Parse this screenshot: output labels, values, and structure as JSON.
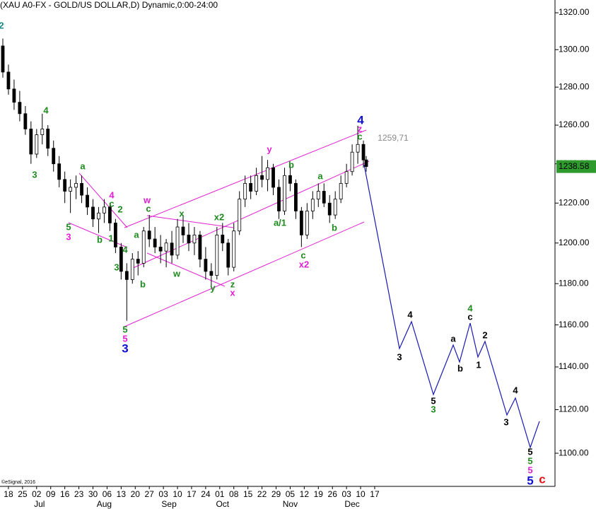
{
  "chart_data": {
    "type": "candlestick",
    "title": "(XAU A0-FX - GOLD/US DOLLAR,D) Dynamic,0:00-24:00",
    "credit": "©eSignal, 2016",
    "log_scale": true,
    "ylim": [
      1085,
      1327
    ],
    "xlim": [
      -3,
      194
    ],
    "yticks": [
      {
        "value": 1100,
        "label": "1100.00"
      },
      {
        "value": 1120,
        "label": "1120.00"
      },
      {
        "value": 1140,
        "label": "1140.00"
      },
      {
        "value": 1160,
        "label": "1160.00"
      },
      {
        "value": 1180,
        "label": "1180.00"
      },
      {
        "value": 1200,
        "label": "1200.00"
      },
      {
        "value": 1220,
        "label": "1220.00"
      },
      {
        "value": 1240,
        "label": "1240.00"
      },
      {
        "value": 1260,
        "label": "1260.00"
      },
      {
        "value": 1280,
        "label": "1280.00"
      },
      {
        "value": 1300,
        "label": "1300.00"
      },
      {
        "value": 1320,
        "label": "1320.00"
      }
    ],
    "xticks": [
      {
        "value": 0,
        "label": "18"
      },
      {
        "value": 5,
        "label": "25"
      },
      {
        "value": 10,
        "label": "02"
      },
      {
        "value": 15,
        "label": "09"
      },
      {
        "value": 20,
        "label": "16"
      },
      {
        "value": 25,
        "label": "23"
      },
      {
        "value": 30,
        "label": "30"
      },
      {
        "value": 35,
        "label": "06"
      },
      {
        "value": 40,
        "label": "13"
      },
      {
        "value": 45,
        "label": "20"
      },
      {
        "value": 50,
        "label": "27"
      },
      {
        "value": 55,
        "label": "03"
      },
      {
        "value": 60,
        "label": "10"
      },
      {
        "value": 65,
        "label": "17"
      },
      {
        "value": 70,
        "label": "24"
      },
      {
        "value": 75,
        "label": "01"
      },
      {
        "value": 80,
        "label": "08"
      },
      {
        "value": 85,
        "label": "15"
      },
      {
        "value": 90,
        "label": "22"
      },
      {
        "value": 95,
        "label": "29"
      },
      {
        "value": 100,
        "label": "05"
      },
      {
        "value": 105,
        "label": "12"
      },
      {
        "value": 110,
        "label": "19"
      },
      {
        "value": 115,
        "label": "26"
      },
      {
        "value": 120,
        "label": "03"
      },
      {
        "value": 125,
        "label": "10"
      },
      {
        "value": 130,
        "label": "17"
      }
    ],
    "month_labels": [
      {
        "value": 11,
        "label": "Jul"
      },
      {
        "value": 34,
        "label": "Aug"
      },
      {
        "value": 57,
        "label": "Sep"
      },
      {
        "value": 76,
        "label": "Oct"
      },
      {
        "value": 100,
        "label": "Nov"
      },
      {
        "value": 122,
        "label": "Dec"
      }
    ],
    "last_price": 1238.58,
    "last_price_color": "#2e9a2e",
    "candles": {
      "x": [
        -2,
        0,
        2,
        4,
        6,
        8,
        10,
        12,
        14,
        16,
        18,
        20,
        22,
        24,
        26,
        28,
        30,
        32,
        34,
        36,
        38,
        40,
        42,
        44,
        46,
        48,
        50,
        52,
        54,
        56,
        58,
        60,
        62,
        64,
        66,
        68,
        70,
        72,
        74,
        76,
        78,
        80,
        82,
        84,
        86,
        88,
        90,
        92,
        94,
        96,
        98,
        100,
        102,
        104,
        106,
        108,
        110,
        112,
        114,
        116,
        118,
        120,
        122,
        124,
        126,
        127
      ],
      "open": [
        1302,
        1288,
        1279,
        1272,
        1266,
        1258,
        1245,
        1255,
        1258,
        1248,
        1240,
        1232,
        1226,
        1228,
        1230,
        1224,
        1218,
        1212,
        1215,
        1218,
        1210,
        1198,
        1186,
        1182,
        1192,
        1190,
        1206,
        1202,
        1198,
        1196,
        1200,
        1194,
        1208,
        1204,
        1200,
        1204,
        1192,
        1186,
        1184,
        1204,
        1200,
        1188,
        1206,
        1222,
        1230,
        1226,
        1234,
        1232,
        1238,
        1228,
        1216,
        1234,
        1230,
        1216,
        1204,
        1216,
        1222,
        1226,
        1220,
        1214,
        1222,
        1230,
        1236,
        1246,
        1250,
        1242
      ],
      "high": [
        1306,
        1292,
        1284,
        1278,
        1270,
        1262,
        1258,
        1266,
        1260,
        1252,
        1244,
        1236,
        1232,
        1234,
        1234,
        1228,
        1222,
        1218,
        1222,
        1220,
        1212,
        1200,
        1190,
        1195,
        1196,
        1208,
        1214,
        1208,
        1204,
        1202,
        1206,
        1212,
        1214,
        1210,
        1208,
        1206,
        1198,
        1190,
        1208,
        1210,
        1202,
        1210,
        1226,
        1234,
        1234,
        1238,
        1244,
        1242,
        1240,
        1232,
        1238,
        1240,
        1232,
        1218,
        1220,
        1226,
        1230,
        1230,
        1224,
        1226,
        1234,
        1240,
        1250,
        1259.71,
        1252,
        1244
      ],
      "low": [
        1285,
        1276,
        1268,
        1262,
        1255,
        1240,
        1243,
        1250,
        1244,
        1236,
        1228,
        1220,
        1215,
        1222,
        1220,
        1214,
        1208,
        1205,
        1210,
        1206,
        1195,
        1182,
        1162,
        1180,
        1184,
        1188,
        1198,
        1195,
        1190,
        1188,
        1190,
        1192,
        1200,
        1196,
        1194,
        1188,
        1182,
        1178,
        1182,
        1196,
        1184,
        1186,
        1204,
        1218,
        1222,
        1224,
        1228,
        1226,
        1224,
        1212,
        1214,
        1226,
        1212,
        1198,
        1202,
        1212,
        1218,
        1218,
        1210,
        1212,
        1220,
        1228,
        1234,
        1240,
        1238,
        1236
      ],
      "close": [
        1288,
        1279,
        1272,
        1266,
        1258,
        1245,
        1255,
        1258,
        1248,
        1240,
        1232,
        1226,
        1228,
        1230,
        1224,
        1218,
        1212,
        1215,
        1218,
        1210,
        1198,
        1186,
        1182,
        1192,
        1190,
        1206,
        1202,
        1198,
        1196,
        1200,
        1194,
        1208,
        1204,
        1200,
        1204,
        1192,
        1186,
        1184,
        1204,
        1200,
        1188,
        1206,
        1222,
        1230,
        1226,
        1234,
        1232,
        1238,
        1228,
        1216,
        1234,
        1230,
        1216,
        1204,
        1216,
        1222,
        1226,
        1220,
        1214,
        1222,
        1230,
        1236,
        1246,
        1250,
        1242,
        1238.58
      ]
    },
    "annotations": [
      {
        "text": "4",
        "color": "#1f8a1f"
      },
      {
        "text": "3",
        "color": "#1f8a1f"
      },
      {
        "text": "a",
        "color": "#1f8a1f"
      },
      {
        "text": "4",
        "color": "#e020d0"
      },
      {
        "text": "c",
        "color": "#1f8a1f"
      },
      {
        "text": "2",
        "color": "#1f8a1f"
      },
      {
        "text": "5",
        "color": "#1f8a1f"
      },
      {
        "text": "3",
        "color": "#e020d0"
      },
      {
        "text": "b",
        "color": "#1f8a1f"
      },
      {
        "text": "1",
        "color": "#1f8a1f"
      },
      {
        "text": "4",
        "color": "#1f8a1f"
      },
      {
        "text": "3",
        "color": "#1f8a1f"
      },
      {
        "text": "w",
        "color": "#e020d0"
      },
      {
        "text": "c",
        "color": "#1f8a1f"
      },
      {
        "text": "a",
        "color": "#1f8a1f"
      },
      {
        "text": "b",
        "color": "#1f8a1f"
      },
      {
        "text": "x",
        "color": "#1f8a1f"
      },
      {
        "text": "w",
        "color": "#1f8a1f"
      },
      {
        "text": "x2",
        "color": "#1f8a1f"
      },
      {
        "text": "y",
        "color": "#1f8a1f"
      },
      {
        "text": "z",
        "color": "#1f8a1f"
      },
      {
        "text": "x",
        "color": "#e020d0"
      },
      {
        "text": "y",
        "color": "#e020d0"
      },
      {
        "text": "b",
        "color": "#1f8a1f"
      },
      {
        "text": "a/1",
        "color": "#1f8a1f"
      },
      {
        "text": "a",
        "color": "#1f8a1f"
      },
      {
        "text": "b",
        "color": "#1f8a1f"
      },
      {
        "text": "c",
        "color": "#1f8a1f"
      },
      {
        "text": "x2",
        "color": "#e020d0"
      },
      {
        "text": "4",
        "color": "#1010d0"
      },
      {
        "text": "z",
        "color": "#e020d0"
      },
      {
        "text": "c",
        "color": "#1f8a1f"
      },
      {
        "text": "1259,71",
        "color": "#888888"
      },
      {
        "text": "5",
        "color": "#1f8a1f"
      },
      {
        "text": "5",
        "color": "#e020d0"
      },
      {
        "text": "3",
        "color": "#1010d0"
      },
      {
        "text": "3",
        "color": "#000000"
      },
      {
        "text": "4",
        "color": "#000000"
      },
      {
        "text": "5",
        "color": "#000000"
      },
      {
        "text": "3",
        "color": "#1f8a1f"
      },
      {
        "text": "a",
        "color": "#000000"
      },
      {
        "text": "b",
        "color": "#000000"
      },
      {
        "text": "4",
        "color": "#1f8a1f"
      },
      {
        "text": "c",
        "color": "#000000"
      },
      {
        "text": "1",
        "color": "#000000"
      },
      {
        "text": "2",
        "color": "#000000"
      },
      {
        "text": "3",
        "color": "#000000"
      },
      {
        "text": "4",
        "color": "#000000"
      },
      {
        "text": "5",
        "color": "#000000"
      },
      {
        "text": "5",
        "color": "#1f8a1f"
      },
      {
        "text": "5",
        "color": "#e020d0"
      },
      {
        "text": "5",
        "color": "#1010d0"
      },
      {
        "text": "c",
        "color": "#e01010"
      },
      {
        "text": "2",
        "color": "#1a8a8a"
      }
    ]
  }
}
